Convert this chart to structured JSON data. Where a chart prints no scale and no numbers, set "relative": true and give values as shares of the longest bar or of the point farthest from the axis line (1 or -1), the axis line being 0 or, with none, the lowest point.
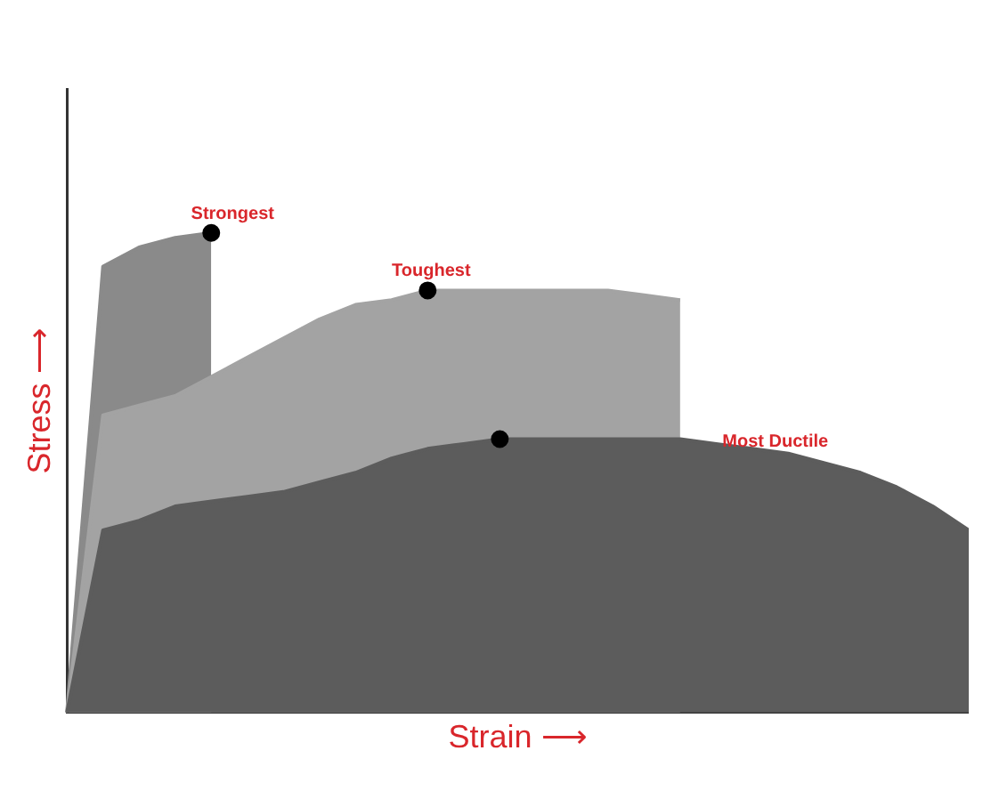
{
  "chart_data": {
    "type": "area",
    "relative": true,
    "xlabel": "Strain ⟶",
    "ylabel": "Stress ⟶",
    "categories": [
      null,
      null,
      null,
      null,
      null,
      null,
      null,
      null,
      null,
      null,
      null,
      null,
      null,
      null,
      null,
      null,
      null,
      null,
      null,
      null,
      null,
      null,
      null,
      null,
      null,
      null
    ],
    "series": [
      {
        "name": "Strongest",
        "color": "#8a8a8a",
        "values": [
          0,
          0.93,
          0.97,
          0.99,
          1.0,
          null,
          null,
          null,
          null,
          null,
          null,
          null,
          null,
          null,
          null,
          null,
          null,
          null,
          null,
          null,
          null,
          null,
          null,
          null,
          null,
          null
        ]
      },
      {
        "name": "Toughest",
        "color": "#a3a3a3",
        "values": [
          0,
          0.62,
          0.64,
          0.66,
          0.7,
          0.74,
          0.78,
          0.82,
          0.85,
          0.86,
          0.88,
          0.88,
          0.88,
          0.88,
          0.88,
          0.88,
          0.87,
          0.86,
          null,
          null,
          null,
          null,
          null,
          null,
          null,
          null
        ]
      },
      {
        "name": "Most Ductile",
        "color": "#5c5c5c",
        "values": [
          0,
          0.38,
          0.4,
          0.43,
          0.44,
          0.45,
          0.46,
          0.48,
          0.5,
          0.53,
          0.55,
          0.56,
          0.57,
          0.57,
          0.57,
          0.57,
          0.57,
          0.57,
          0.56,
          0.55,
          0.54,
          0.52,
          0.5,
          0.47,
          0.43,
          0.38
        ]
      }
    ],
    "grid": false,
    "legend": false
  }
}
